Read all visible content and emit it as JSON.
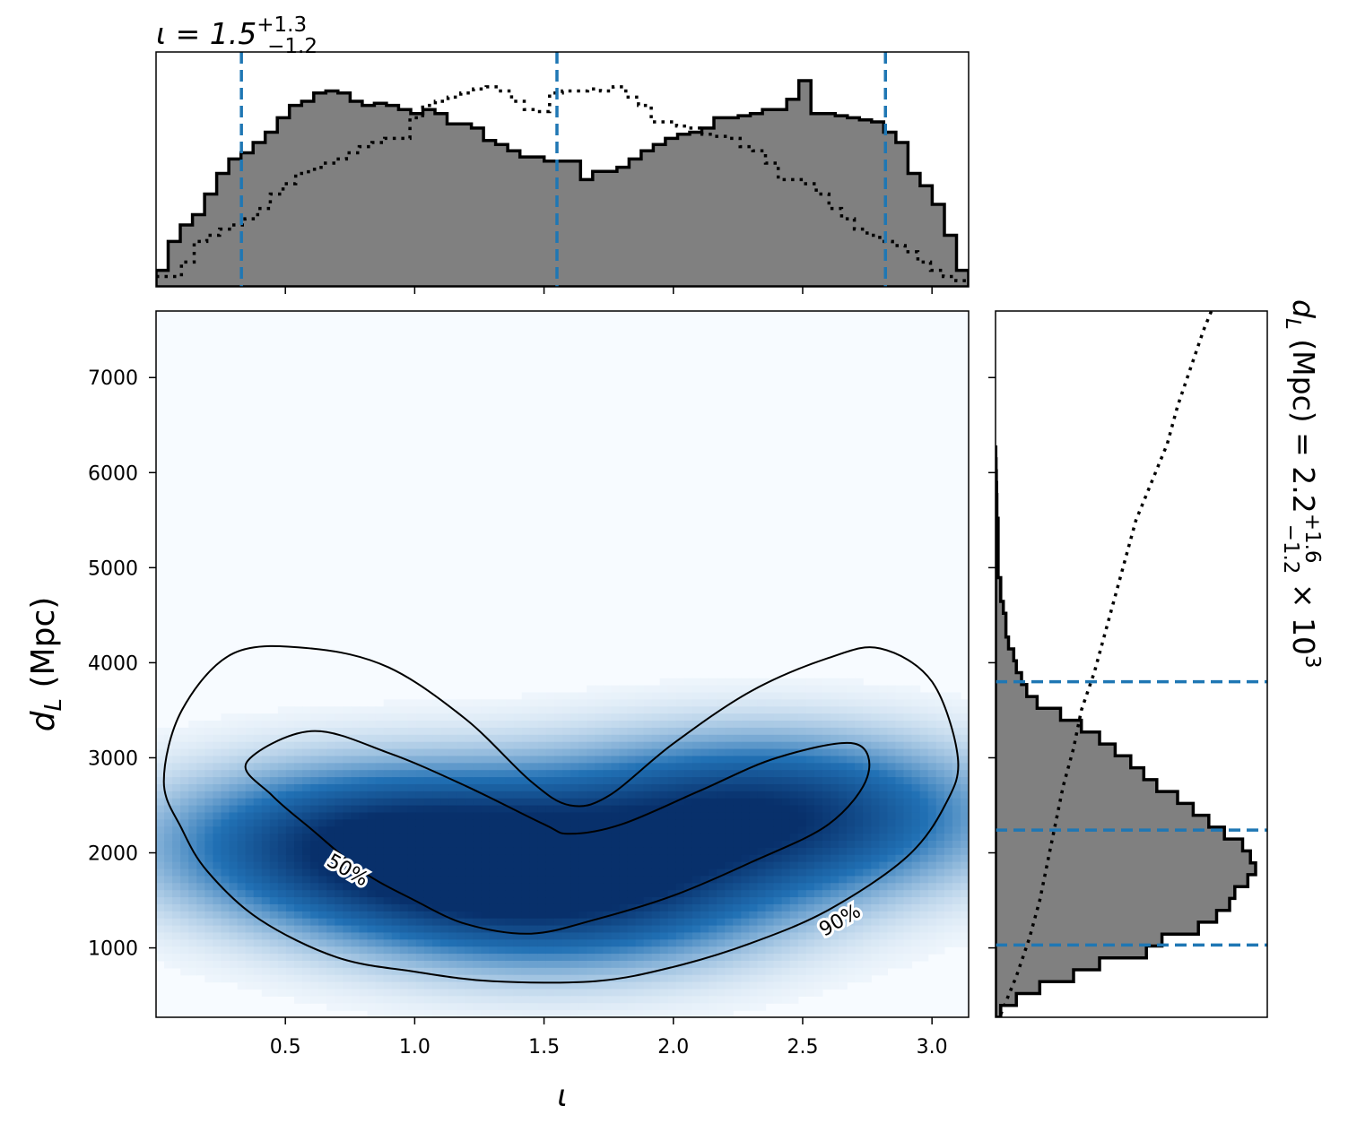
{
  "colors": {
    "hist_fill": "#808080",
    "hist_edge": "#000000",
    "quantile_line": "#1f77b4",
    "density_dark": "#08306b",
    "density_light": "#f7fbff"
  },
  "top_title": {
    "base": "ι = 1.5",
    "sup": "+1.3",
    "sub": "−1.2"
  },
  "right_title": {
    "base": "d",
    "base_sub": "L",
    "rest": " (Mpc) = 2.2",
    "sup": "+1.6",
    "sub": "−1.2",
    "tail": " × 10",
    "exp": "3"
  },
  "chart_data": [
    {
      "type": "heatmap",
      "title": "",
      "xlabel": "ι",
      "ylabel_base": "d",
      "ylabel_sub": "L",
      "ylabel_unit": " (Mpc)",
      "xlim": [
        0.0,
        3.1416
      ],
      "ylim": [
        270,
        7700
      ],
      "xticks": [
        0.5,
        1.0,
        1.5,
        2.0,
        2.5,
        3.0
      ],
      "xtick_labels": [
        "0.5",
        "1.0",
        "1.5",
        "2.0",
        "2.5",
        "3.0"
      ],
      "yticks": [
        1000,
        2000,
        3000,
        4000,
        5000,
        6000,
        7000
      ],
      "ytick_labels": [
        "1000",
        "2000",
        "3000",
        "4000",
        "5000",
        "6000",
        "7000"
      ],
      "contour_levels": [
        "50%",
        "90%"
      ],
      "density_peaks": [
        {
          "x": 0.9,
          "y": 2100,
          "weight": 1.0
        },
        {
          "x": 2.35,
          "y": 2400,
          "weight": 0.95
        },
        {
          "x": 1.55,
          "y": 1600,
          "weight": 0.9
        }
      ],
      "contour_50": [
        [
          0.35,
          2950
        ],
        [
          0.6,
          3280
        ],
        [
          0.9,
          3050
        ],
        [
          1.2,
          2700
        ],
        [
          1.5,
          2300
        ],
        [
          1.6,
          2200
        ],
        [
          1.8,
          2300
        ],
        [
          2.1,
          2650
        ],
        [
          2.4,
          3000
        ],
        [
          2.7,
          3150
        ],
        [
          2.75,
          2800
        ],
        [
          2.6,
          2300
        ],
        [
          2.3,
          1900
        ],
        [
          2.0,
          1550
        ],
        [
          1.7,
          1300
        ],
        [
          1.45,
          1150
        ],
        [
          1.2,
          1250
        ],
        [
          1.0,
          1500
        ],
        [
          0.8,
          1800
        ],
        [
          0.6,
          2250
        ],
        [
          0.45,
          2600
        ],
        [
          0.35,
          2950
        ]
      ],
      "contour_90": [
        [
          0.03,
          2750
        ],
        [
          0.1,
          3500
        ],
        [
          0.3,
          4100
        ],
        [
          0.6,
          4150
        ],
        [
          0.9,
          3950
        ],
        [
          1.2,
          3400
        ],
        [
          1.45,
          2750
        ],
        [
          1.6,
          2500
        ],
        [
          1.75,
          2600
        ],
        [
          2.0,
          3150
        ],
        [
          2.3,
          3700
        ],
        [
          2.6,
          4050
        ],
        [
          2.8,
          4150
        ],
        [
          3.0,
          3800
        ],
        [
          3.1,
          3000
        ],
        [
          3.05,
          2500
        ],
        [
          2.9,
          1950
        ],
        [
          2.6,
          1400
        ],
        [
          2.3,
          1050
        ],
        [
          2.0,
          800
        ],
        [
          1.7,
          650
        ],
        [
          1.3,
          650
        ],
        [
          1.0,
          750
        ],
        [
          0.7,
          900
        ],
        [
          0.4,
          1300
        ],
        [
          0.2,
          1800
        ],
        [
          0.1,
          2250
        ],
        [
          0.03,
          2750
        ]
      ]
    },
    {
      "type": "bar",
      "title": "ι = 1.5 +1.3 −1.2",
      "xlim": [
        0.0,
        3.1416
      ],
      "bin_width": 0.0628,
      "values": [
        0.08,
        0.22,
        0.3,
        0.35,
        0.45,
        0.55,
        0.62,
        0.65,
        0.7,
        0.75,
        0.82,
        0.88,
        0.9,
        0.94,
        0.95,
        0.94,
        0.9,
        0.88,
        0.89,
        0.88,
        0.86,
        0.84,
        0.86,
        0.84,
        0.79,
        0.79,
        0.77,
        0.71,
        0.69,
        0.66,
        0.63,
        0.63,
        0.61,
        0.61,
        0.61,
        0.52,
        0.56,
        0.56,
        0.58,
        0.62,
        0.66,
        0.69,
        0.72,
        0.74,
        0.75,
        0.77,
        0.82,
        0.82,
        0.83,
        0.84,
        0.86,
        0.86,
        0.91,
        1.0,
        0.84,
        0.84,
        0.83,
        0.82,
        0.81,
        0.8,
        0.75,
        0.7,
        0.55,
        0.49,
        0.4,
        0.25,
        0.08
      ],
      "prior_values": [
        0.05,
        0.05,
        0.12,
        0.22,
        0.25,
        0.28,
        0.3,
        0.33,
        0.38,
        0.45,
        0.5,
        0.55,
        0.57,
        0.6,
        0.62,
        0.65,
        0.68,
        0.7,
        0.72,
        0.72,
        0.82,
        0.88,
        0.9,
        0.92,
        0.94,
        0.96,
        0.97,
        0.95,
        0.9,
        0.86,
        0.85,
        0.94,
        0.95,
        0.95,
        0.96,
        0.95,
        0.97,
        0.92,
        0.88,
        0.8,
        0.8,
        0.78,
        0.77,
        0.74,
        0.73,
        0.72,
        0.68,
        0.66,
        0.6,
        0.52,
        0.52,
        0.5,
        0.45,
        0.38,
        0.33,
        0.28,
        0.25,
        0.22,
        0.2,
        0.17,
        0.12,
        0.08,
        0.05,
        0.03
      ],
      "quantiles": [
        0.33,
        1.55,
        2.82
      ]
    },
    {
      "type": "bar",
      "title": "d_L (Mpc) = 2.2 +1.6 −1.2 × 10^3",
      "orientation": "horizontal",
      "ylim": [
        270,
        7700
      ],
      "bin_edges": [
        270,
        395,
        520,
        645,
        770,
        895,
        1020,
        1145,
        1270,
        1395,
        1520,
        1645,
        1770,
        1895,
        2020,
        2145,
        2270,
        2395,
        2520,
        2645,
        2770,
        2895,
        3020,
        3145,
        3270,
        3395,
        3520,
        3645,
        3770,
        3895,
        4020,
        4145,
        4270,
        4395,
        4520,
        4645,
        4770,
        4895,
        5020,
        5145,
        5270,
        5395,
        5520,
        5645,
        5770,
        5895,
        6020,
        6145,
        6270
      ],
      "values": [
        0.02,
        0.08,
        0.17,
        0.3,
        0.4,
        0.58,
        0.64,
        0.78,
        0.85,
        0.9,
        0.92,
        0.97,
        1.0,
        0.98,
        0.95,
        0.88,
        0.82,
        0.76,
        0.7,
        0.62,
        0.57,
        0.52,
        0.46,
        0.4,
        0.33,
        0.25,
        0.16,
        0.12,
        0.1,
        0.08,
        0.07,
        0.05,
        0.04,
        0.04,
        0.03,
        0.02,
        0.02,
        0.01,
        0.01,
        0.01,
        0.01,
        0.01,
        0.005,
        0.005,
        0.004,
        0.003,
        0.002,
        0.001
      ],
      "prior_y": [
        300,
        700,
        1100,
        1500,
        1900,
        2300,
        2700,
        3100,
        3500,
        3900,
        4300,
        4700,
        5100,
        5500,
        5900,
        6300,
        6700,
        7100,
        7500,
        7700
      ],
      "prior_values": [
        0.02,
        0.08,
        0.13,
        0.17,
        0.2,
        0.23,
        0.26,
        0.3,
        0.33,
        0.38,
        0.42,
        0.46,
        0.5,
        0.54,
        0.6,
        0.66,
        0.7,
        0.75,
        0.8,
        0.83
      ],
      "quantiles": [
        1030,
        2240,
        3800
      ]
    }
  ]
}
